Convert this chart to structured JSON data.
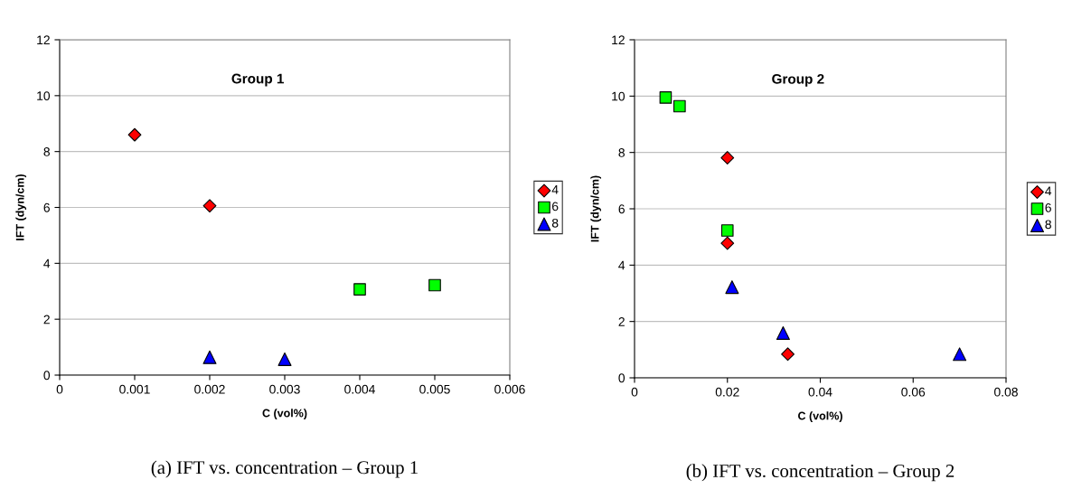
{
  "chart_data": [
    {
      "type": "scatter",
      "xlabel": "C (vol%)",
      "ylabel": "IFT (dyn/cm)",
      "annotations": [
        "Group 1",
        "(a) IFT vs. concentration – Group 1"
      ],
      "xlim": [
        0,
        0.006
      ],
      "xticks": [
        0,
        0.001,
        0.002,
        0.003,
        0.004,
        0.005,
        0.006
      ],
      "ylim": [
        0,
        12
      ],
      "yticks": [
        0,
        2,
        4,
        6,
        8,
        10,
        12
      ],
      "grid": "y",
      "legend": "right",
      "series": [
        {
          "name": "4",
          "color": "#ff0000",
          "marker": "diamond",
          "x": [
            0.001,
            0.002
          ],
          "values": [
            8.6,
            6.06
          ]
        },
        {
          "name": "6",
          "color": "#00ff00",
          "marker": "square",
          "x": [
            0.004,
            0.005
          ],
          "values": [
            3.07,
            3.22
          ]
        },
        {
          "name": "8",
          "color": "#0000ff",
          "marker": "triangle",
          "x": [
            0.002,
            0.003
          ],
          "values": [
            0.64,
            0.57
          ]
        }
      ]
    },
    {
      "type": "scatter",
      "xlabel": "C (vol%)",
      "ylabel": "IFT (dyn/cm)",
      "annotations": [
        "Group 2",
        "(b) IFT vs. concentration – Group 2"
      ],
      "xlim": [
        0,
        0.08
      ],
      "xticks": [
        0,
        0.02,
        0.04,
        0.06,
        0.08
      ],
      "ylim": [
        0,
        12
      ],
      "yticks": [
        0,
        2,
        4,
        6,
        8,
        10,
        12
      ],
      "grid": "y",
      "legend": "right",
      "series": [
        {
          "name": "4",
          "color": "#ff0000",
          "marker": "diamond",
          "x": [
            0.02,
            0.02,
            0.033
          ],
          "values": [
            7.81,
            4.78,
            0.84
          ]
        },
        {
          "name": "6",
          "color": "#00ff00",
          "marker": "square",
          "x": [
            0.0067,
            0.0097,
            0.02
          ],
          "values": [
            9.95,
            9.64,
            5.23
          ]
        },
        {
          "name": "8",
          "color": "#0000ff",
          "marker": "triangle",
          "x": [
            0.021,
            0.032,
            0.07
          ],
          "values": [
            3.22,
            1.59,
            0.84
          ]
        }
      ]
    }
  ]
}
